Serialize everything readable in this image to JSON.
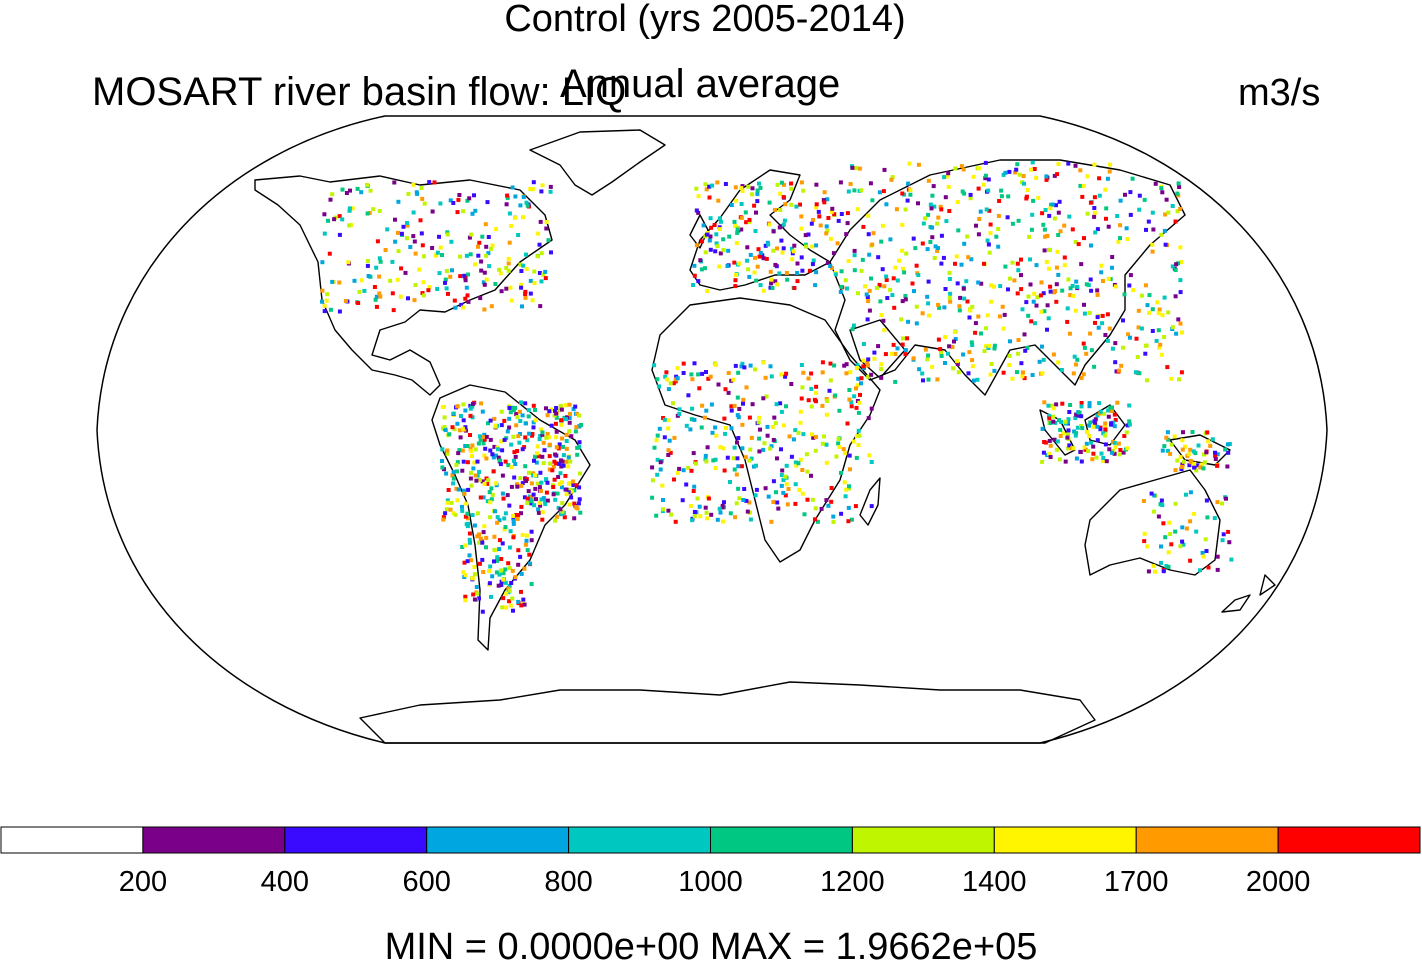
{
  "figure": {
    "title": "Control (yrs 2005-2014)",
    "left_subtitle": "MOSART river basin flow: LIQ",
    "center_subtitle": "Annual average",
    "units": "m3/s",
    "min_max_text": "MIN = 0.0000e+00 MAX = 1.9662e+05"
  },
  "map": {
    "projection": "Robinson",
    "field": "MOSART river basin flow: LIQ"
  },
  "colorbar": {
    "colors": [
      "#ffffff",
      "#7a008a",
      "#3a0aff",
      "#00a6e0",
      "#00c8c0",
      "#00c882",
      "#c0f500",
      "#fff500",
      "#ff9a00",
      "#ff0000"
    ],
    "labels": [
      "200",
      "400",
      "600",
      "800",
      "1000",
      "1200",
      "1400",
      "1700",
      "2000"
    ]
  }
}
